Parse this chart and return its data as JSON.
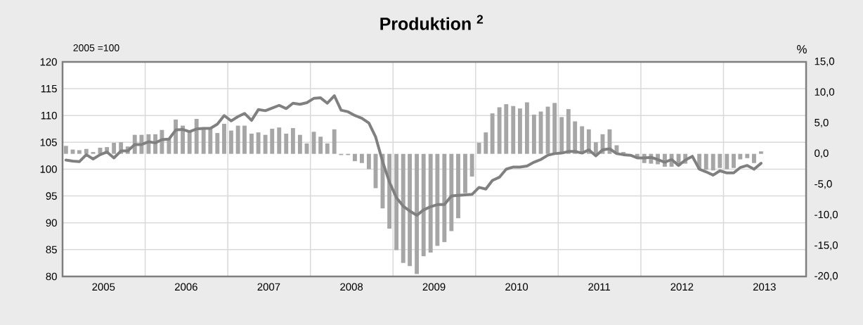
{
  "chart_data": {
    "type": "bar",
    "title": "Produktion $^{2}$",
    "ylabel": "2005 =100",
    "y2label": "%",
    "x": [
      "2005-01-16",
      "2005-02-15",
      "2005-03-16",
      "2005-04-16",
      "2005-05-16",
      "2005-06-16",
      "2005-07-16",
      "2005-08-16",
      "2005-09-16",
      "2005-10-16",
      "2005-11-16",
      "2005-12-16",
      "2006-01-16",
      "2006-02-15",
      "2006-03-16",
      "2006-04-16",
      "2006-05-16",
      "2006-06-16",
      "2006-07-16",
      "2006-08-16",
      "2006-09-16",
      "2006-10-16",
      "2006-11-16",
      "2006-12-16",
      "2007-01-16",
      "2007-02-15",
      "2007-03-16",
      "2007-04-16",
      "2007-05-16",
      "2007-06-16",
      "2007-07-16",
      "2007-08-16",
      "2007-09-16",
      "2007-10-16",
      "2007-11-16",
      "2007-12-16",
      "2008-01-16",
      "2008-02-15",
      "2008-03-16",
      "2008-04-16",
      "2008-05-16",
      "2008-06-16",
      "2008-07-16",
      "2008-08-16",
      "2008-09-16",
      "2008-10-16",
      "2008-11-16",
      "2008-12-16",
      "2009-01-16",
      "2009-02-15",
      "2009-03-16",
      "2009-04-16",
      "2009-05-16",
      "2009-06-16",
      "2009-07-16",
      "2009-08-16",
      "2009-09-16",
      "2009-10-16",
      "2009-11-16",
      "2009-12-16",
      "2010-01-16",
      "2010-02-15",
      "2010-03-16",
      "2010-04-16",
      "2010-05-16",
      "2010-06-16",
      "2010-07-16",
      "2010-08-16",
      "2010-09-16",
      "2010-10-16",
      "2010-11-16",
      "2010-12-16",
      "2011-01-16",
      "2011-02-15",
      "2011-03-16",
      "2011-04-16",
      "2011-05-16",
      "2011-06-16",
      "2011-07-16",
      "2011-08-16",
      "2011-09-16",
      "2011-10-16",
      "2011-11-16",
      "2011-12-16",
      "2012-01-16",
      "2012-02-15",
      "2012-03-16",
      "2012-04-16",
      "2012-05-16",
      "2012-06-16",
      "2012-07-16",
      "2012-08-16",
      "2012-09-16",
      "2012-10-16",
      "2012-11-16",
      "2012-12-16",
      "2013-01-16",
      "2013-02-15",
      "2013-03-16",
      "2013-04-16",
      "2013-05-16",
      "2013-06-16"
    ],
    "series": [
      {
        "axis": "y2",
        "color": "#a6a6a6",
        "values": [
          1.3,
          0.7,
          0.6,
          0.8,
          0.3,
          1.0,
          1.1,
          1.8,
          1.9,
          1.2,
          3.1,
          3.1,
          3.2,
          3.2,
          3.9,
          2.6,
          5.6,
          4.6,
          3.7,
          5.7,
          4.1,
          4.1,
          3.4,
          4.9,
          3.8,
          4.6,
          4.6,
          3.3,
          3.5,
          3.1,
          4.1,
          4.3,
          3.3,
          4.2,
          3.1,
          1.7,
          3.6,
          2.8,
          1.7,
          4.0,
          -0.2,
          -0.2,
          -1.2,
          -1.5,
          -2.5,
          -5.6,
          -8.9,
          -12.2,
          -15.7,
          -17.8,
          -18.3,
          -19.6,
          -16.7,
          -16.1,
          -15.0,
          -14.4,
          -12.6,
          -10.5,
          -6.4,
          -3.7,
          1.8,
          3.5,
          6.6,
          7.6,
          8.1,
          7.8,
          7.4,
          8.4,
          6.4,
          6.9,
          7.7,
          8.3,
          6.0,
          7.3,
          5.3,
          4.5,
          4.0,
          1.9,
          3.2,
          4.0,
          1.4,
          0.3,
          null,
          -0.5,
          -1.5,
          -1.6,
          -1.7,
          -2.1,
          -2.1,
          -2.0,
          -1.6,
          null,
          -2.5,
          -2.6,
          -2.7,
          -2.3,
          -2.5,
          -2.3,
          -0.9,
          -0.7,
          -1.5,
          0.4
        ]
      },
      {
        "type": "line",
        "axis": "y",
        "color": "#808080",
        "values": [
          101.7,
          101.5,
          101.4,
          102.7,
          101.9,
          102.7,
          103.2,
          102.1,
          103.4,
          103.4,
          104.6,
          104.6,
          105.1,
          104.9,
          105.5,
          105.6,
          107.3,
          107.4,
          107.0,
          107.5,
          107.6,
          107.6,
          108.4,
          110.0,
          109.0,
          109.8,
          110.4,
          109.1,
          111.1,
          110.9,
          111.4,
          111.9,
          111.3,
          112.3,
          112.1,
          112.4,
          113.2,
          113.3,
          112.3,
          113.7,
          111.0,
          110.7,
          110.0,
          109.5,
          108.6,
          106.0,
          101.4,
          97.6,
          94.7,
          93.1,
          92.2,
          91.4,
          92.4,
          93.0,
          93.4,
          93.4,
          95.0,
          95.1,
          95.2,
          95.3,
          96.6,
          96.3,
          97.9,
          98.5,
          100.0,
          100.4,
          100.4,
          100.6,
          101.3,
          101.8,
          102.6,
          102.9,
          103.0,
          103.3,
          103.3,
          103.0,
          103.6,
          102.5,
          103.6,
          103.8,
          102.9,
          102.7,
          102.6,
          102.1,
          102.1,
          102.2,
          101.8,
          101.3,
          101.8,
          100.7,
          101.7,
          102.4,
          100.0,
          99.5,
          98.9,
          99.7,
          99.3,
          99.3,
          100.3,
          100.7,
          100.0,
          101.1
        ]
      }
    ],
    "xlim": [
      "2005-01-01",
      "2014-01-01"
    ],
    "xticks": [
      {
        "value": "2005-07-01",
        "label": "2005"
      },
      {
        "value": "2006-01-01",
        "label": null
      },
      {
        "value": "2006-07-01",
        "label": "2006"
      },
      {
        "value": "2007-01-01",
        "label": null
      },
      {
        "value": "2007-07-01",
        "label": "2007"
      },
      {
        "value": "2008-01-01",
        "label": null
      },
      {
        "value": "2008-07-01",
        "label": "2008"
      },
      {
        "value": "2009-01-01",
        "label": null
      },
      {
        "value": "2009-07-01",
        "label": "2009"
      },
      {
        "value": "2010-01-01",
        "label": null
      },
      {
        "value": "2010-07-01",
        "label": "2010"
      },
      {
        "value": "2011-01-01",
        "label": null
      },
      {
        "value": "2011-07-01",
        "label": "2011"
      },
      {
        "value": "2012-01-01",
        "label": null
      },
      {
        "value": "2012-07-01",
        "label": "2012"
      },
      {
        "value": "2013-01-01",
        "label": null
      },
      {
        "value": "2013-07-01",
        "label": "2013"
      }
    ],
    "ylim": [
      80,
      120
    ],
    "yticks": [
      80,
      85,
      90,
      95,
      100,
      105,
      110,
      115,
      120
    ],
    "y2lim": [
      -20,
      15
    ],
    "y2ticks": [
      {
        "value": -20,
        "label": "-20,0"
      },
      {
        "value": -15,
        "label": "-15,0"
      },
      {
        "value": -10,
        "label": "-10,0"
      },
      {
        "value": -5,
        "label": "-5,0"
      },
      {
        "value": 0,
        "label": "0,0"
      },
      {
        "value": 5,
        "label": "5,0"
      },
      {
        "value": 10,
        "label": "10,0"
      },
      {
        "value": 15,
        "label": "15,0"
      }
    ],
    "grid": true
  }
}
